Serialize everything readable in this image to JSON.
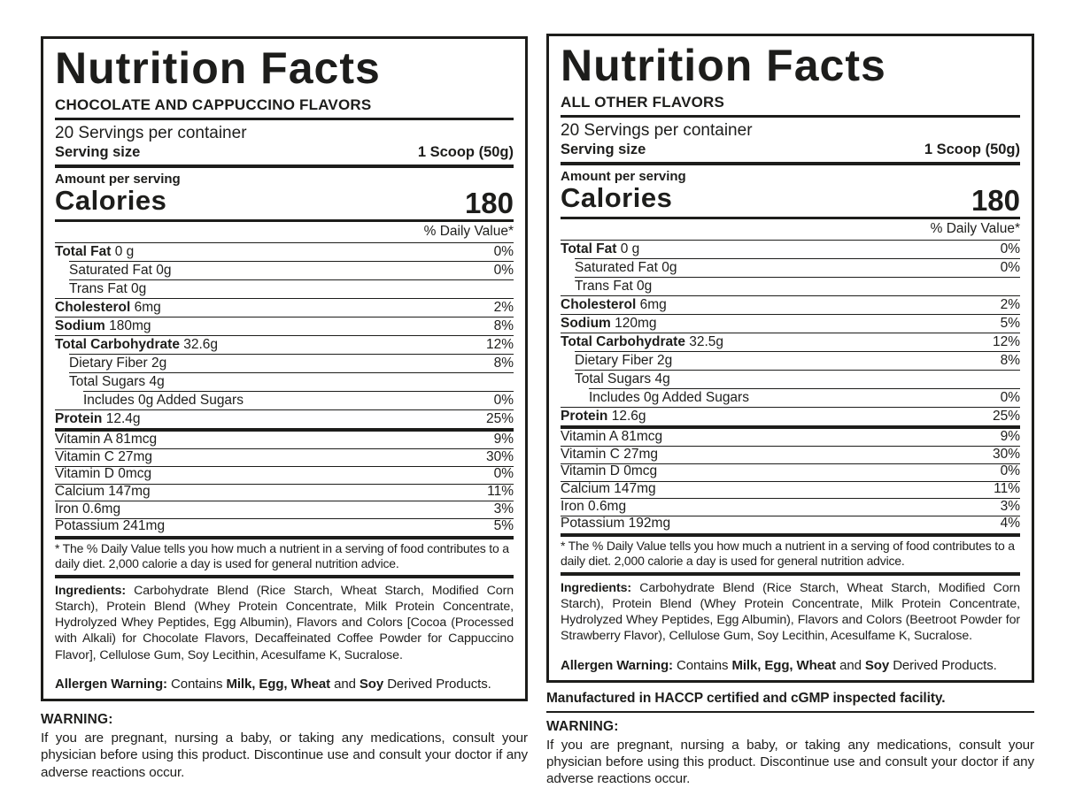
{
  "colors": {
    "ink": "#1d1d1b",
    "background": "#ffffff"
  },
  "panels": [
    {
      "title": "Nutrition Facts",
      "flavor": "CHOCOLATE AND CAPPUCCINO FLAVORS",
      "servings_per_container": "20 Servings per container",
      "serving_size_label": "Serving size",
      "serving_size_value": "1 Scoop (50g)",
      "amount_per_serving": "Amount per serving",
      "calories_label": "Calories",
      "calories_value": "180",
      "daily_value_header": "% Daily Value*",
      "nutrients": [
        {
          "label": "Total Fat",
          "amount": "0 g",
          "dv": "0%",
          "bold": true,
          "indent": 0
        },
        {
          "label": "Saturated Fat",
          "amount": "0g",
          "dv": "0%",
          "bold": false,
          "indent": 1
        },
        {
          "label": "Trans Fat",
          "amount": "0g",
          "dv": "",
          "bold": false,
          "indent": 1
        },
        {
          "label": "Cholesterol",
          "amount": "6mg",
          "dv": "2%",
          "bold": true,
          "indent": 0
        },
        {
          "label": "Sodium",
          "amount": "180mg",
          "dv": "8%",
          "bold": true,
          "indent": 0
        },
        {
          "label": "Total Carbohydrate",
          "amount": "32.6g",
          "dv": "12%",
          "bold": true,
          "indent": 0
        },
        {
          "label": "Dietary Fiber",
          "amount": "2g",
          "dv": "8%",
          "bold": false,
          "indent": 1
        },
        {
          "label": "Total Sugars",
          "amount": "4g",
          "dv": "",
          "bold": false,
          "indent": 1
        },
        {
          "label": "Includes 0g Added Sugars",
          "amount": "",
          "dv": "0%",
          "bold": false,
          "indent": 2
        },
        {
          "label": "Protein",
          "amount": "12.4g",
          "dv": "25%",
          "bold": true,
          "indent": 0
        }
      ],
      "vitamins": [
        {
          "label": "Vitamin A 81mcg",
          "dv": "9%"
        },
        {
          "label": "Vitamin C 27mg",
          "dv": "30%"
        },
        {
          "label": "Vitamin D 0mcg",
          "dv": "0%"
        },
        {
          "label": "Calcium 147mg",
          "dv": "11%"
        },
        {
          "label": "Iron 0.6mg",
          "dv": "3%"
        },
        {
          "label": "Potassium 241mg",
          "dv": "5%"
        }
      ],
      "footnote": "* The % Daily Value tells you how much a nutrient in a serving of food contributes to a daily diet. 2,000 calorie a day is used for general nutrition advice.",
      "ingredients_label": "Ingredients:",
      "ingredients_text": " Carbohydrate Blend (Rice Starch, Wheat Starch, Modified Corn Starch), Protein Blend (Whey Protein Concentrate, Milk Protein Concentrate, Hydrolyzed Whey Peptides, Egg Albumin), Flavors and Colors [Cocoa (Processed with Alkali) for Chocolate Flavors, Decaffeinated Coffee Powder for Cappuccino Flavor], Cellulose Gum, Soy Lecithin, Acesulfame K, Sucralose.",
      "allergen_segments": [
        {
          "text": "Allergen Warning: ",
          "bold": true
        },
        {
          "text": "Contains ",
          "bold": false
        },
        {
          "text": "Milk, Egg, Wheat ",
          "bold": true
        },
        {
          "text": "and ",
          "bold": false
        },
        {
          "text": "Soy ",
          "bold": true
        },
        {
          "text": "Derived Products.",
          "bold": false
        }
      ]
    },
    {
      "title": "Nutrition Facts",
      "flavor": "ALL OTHER FLAVORS",
      "servings_per_container": "20 Servings per container",
      "serving_size_label": "Serving size",
      "serving_size_value": "1 Scoop (50g)",
      "amount_per_serving": "Amount per serving",
      "calories_label": "Calories",
      "calories_value": "180",
      "daily_value_header": "% Daily Value*",
      "nutrients": [
        {
          "label": "Total Fat",
          "amount": "0 g",
          "dv": "0%",
          "bold": true,
          "indent": 0
        },
        {
          "label": "Saturated Fat",
          "amount": "0g",
          "dv": "0%",
          "bold": false,
          "indent": 1
        },
        {
          "label": "Trans Fat",
          "amount": "0g",
          "dv": "",
          "bold": false,
          "indent": 1
        },
        {
          "label": "Cholesterol",
          "amount": "6mg",
          "dv": "2%",
          "bold": true,
          "indent": 0
        },
        {
          "label": "Sodium",
          "amount": "120mg",
          "dv": "5%",
          "bold": true,
          "indent": 0
        },
        {
          "label": "Total Carbohydrate",
          "amount": "32.5g",
          "dv": "12%",
          "bold": true,
          "indent": 0
        },
        {
          "label": "Dietary Fiber",
          "amount": "2g",
          "dv": "8%",
          "bold": false,
          "indent": 1
        },
        {
          "label": "Total Sugars",
          "amount": "4g",
          "dv": "",
          "bold": false,
          "indent": 1
        },
        {
          "label": "Includes 0g Added Sugars",
          "amount": "",
          "dv": "0%",
          "bold": false,
          "indent": 2
        },
        {
          "label": "Protein",
          "amount": "12.6g",
          "dv": "25%",
          "bold": true,
          "indent": 0
        }
      ],
      "vitamins": [
        {
          "label": "Vitamin A 81mcg",
          "dv": "9%"
        },
        {
          "label": "Vitamin C 27mg",
          "dv": "30%"
        },
        {
          "label": "Vitamin D 0mcg",
          "dv": "0%"
        },
        {
          "label": "Calcium 147mg",
          "dv": "11%"
        },
        {
          "label": "Iron 0.6mg",
          "dv": "3%"
        },
        {
          "label": "Potassium 192mg",
          "dv": "4%"
        }
      ],
      "footnote": "* The % Daily Value tells you how much a nutrient in a serving of food contributes to a daily diet. 2,000 calorie a day is used for general nutrition advice.",
      "ingredients_label": "Ingredients:",
      "ingredients_text": " Carbohydrate Blend (Rice Starch, Wheat Starch, Modified Corn Starch), Protein Blend (Whey Protein Concentrate, Milk Protein Concentrate, Hydrolyzed Whey Peptides, Egg Albumin), Flavors and Colors (Beetroot Powder for Strawberry Flavor), Cellulose Gum, Soy Lecithin, Acesulfame K, Sucralose.",
      "allergen_segments": [
        {
          "text": "Allergen Warning: ",
          "bold": true
        },
        {
          "text": "Contains ",
          "bold": false
        },
        {
          "text": "Milk, Egg, Wheat ",
          "bold": true
        },
        {
          "text": "and ",
          "bold": false
        },
        {
          "text": "Soy ",
          "bold": true
        },
        {
          "text": "Derived Products.",
          "bold": false
        }
      ]
    }
  ],
  "footers": {
    "left": {
      "warning_title": "WARNING:",
      "warning_text": "If you are pregnant, nursing a baby, or taking any medications, consult your physician before using this product. Discontinue use and consult your doctor if any adverse reactions occur."
    },
    "right": {
      "manufactured": "Manufactured in HACCP certified and cGMP inspected facility.",
      "warning_title": "WARNING:",
      "warning_text": "If you are pregnant, nursing a baby, or taking any medications, consult your physician before using this product. Discontinue use and consult your doctor if any adverse reactions occur."
    }
  }
}
